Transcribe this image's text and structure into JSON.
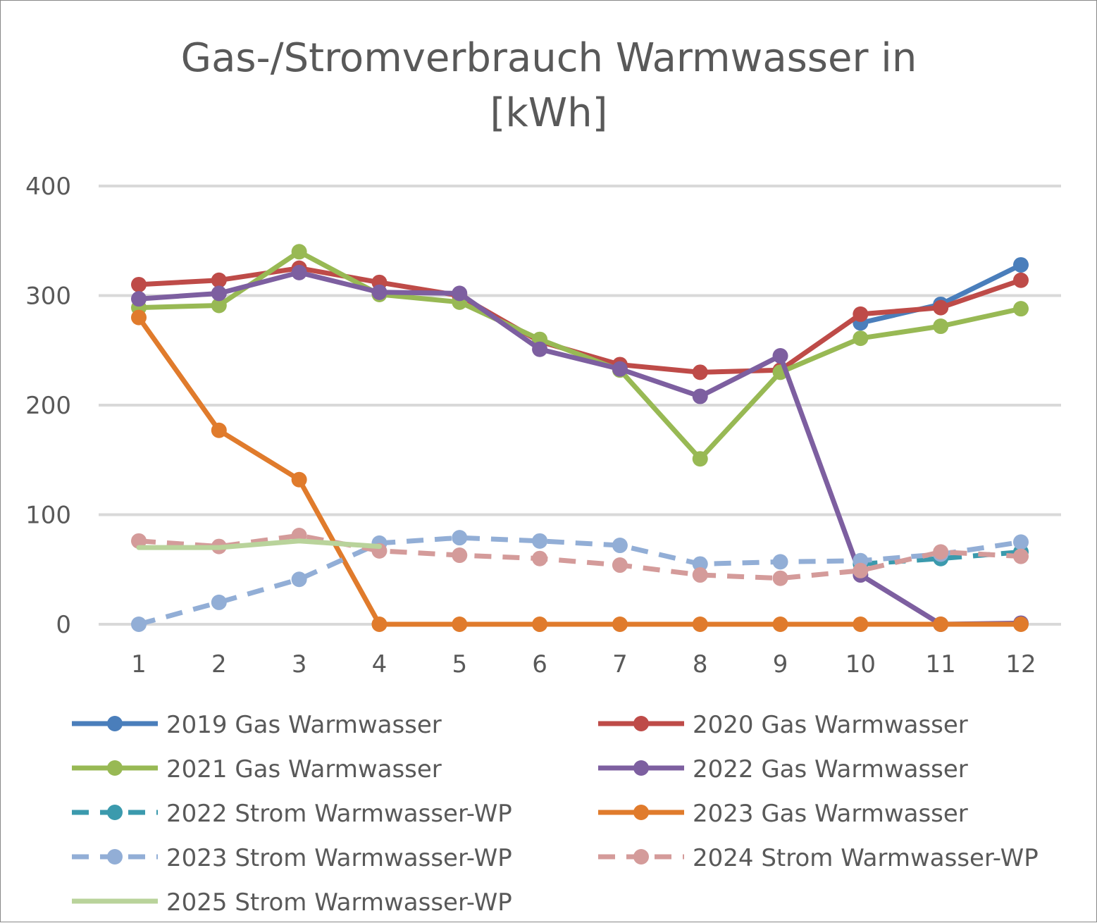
{
  "chart_data": {
    "type": "line",
    "title_lines": [
      "Gas-/Stromverbrauch Warmwasser in",
      "[kWh]"
    ],
    "xlabel": "",
    "ylabel": "",
    "categories": [
      "1",
      "2",
      "3",
      "4",
      "5",
      "6",
      "7",
      "8",
      "9",
      "10",
      "11",
      "12"
    ],
    "ylim": [
      0,
      400
    ],
    "yticks": [
      "0",
      "100",
      "200",
      "300",
      "400"
    ],
    "grid": true,
    "legend_position": "bottom",
    "series": [
      {
        "name": "2019 Gas Warmwasser",
        "color": "#4a7ebb",
        "dash": "solid",
        "marker": true,
        "values": [
          null,
          null,
          null,
          null,
          null,
          null,
          null,
          null,
          null,
          275,
          292,
          328
        ]
      },
      {
        "name": "2020 Gas Warmwasser",
        "color": "#be4b48",
        "dash": "solid",
        "marker": true,
        "values": [
          310,
          314,
          325,
          312,
          300,
          258,
          237,
          230,
          232,
          283,
          289,
          314
        ]
      },
      {
        "name": "2021 Gas Warmwasser",
        "color": "#98b954",
        "dash": "solid",
        "marker": true,
        "values": [
          289,
          291,
          340,
          301,
          294,
          260,
          232,
          151,
          230,
          261,
          272,
          288
        ]
      },
      {
        "name": "2022 Gas Warmwasser",
        "color": "#7d5fa0",
        "dash": "solid",
        "marker": true,
        "values": [
          297,
          302,
          321,
          303,
          302,
          251,
          233,
          208,
          245,
          45,
          0,
          1
        ]
      },
      {
        "name": "2022 Strom Warmwasser-WP",
        "color": "#3b9aad",
        "dash": "dashed",
        "marker": true,
        "values": [
          null,
          null,
          null,
          null,
          null,
          null,
          null,
          null,
          null,
          55,
          60,
          66
        ]
      },
      {
        "name": "2023 Gas Warmwasser",
        "color": "#e07b2c",
        "dash": "solid",
        "marker": true,
        "values": [
          280,
          177,
          132,
          0,
          0,
          0,
          0,
          0,
          0,
          0,
          0,
          0
        ]
      },
      {
        "name": "2023 Strom Warmwasser-WP",
        "color": "#92aed6",
        "dash": "dashed",
        "marker": true,
        "values": [
          0,
          20,
          41,
          74,
          79,
          76,
          72,
          55,
          57,
          58,
          64,
          75
        ]
      },
      {
        "name": "2024 Strom Warmwasser-WP",
        "color": "#d49b9a",
        "dash": "dashed",
        "marker": true,
        "values": [
          76,
          71,
          81,
          67,
          63,
          60,
          54,
          45,
          42,
          49,
          66,
          62
        ]
      },
      {
        "name": "2025 Strom Warmwasser-WP",
        "color": "#b9d39b",
        "dash": "solid",
        "marker": false,
        "values": [
          70,
          70,
          76,
          71,
          null,
          null,
          null,
          null,
          null,
          null,
          null,
          null
        ]
      }
    ]
  }
}
